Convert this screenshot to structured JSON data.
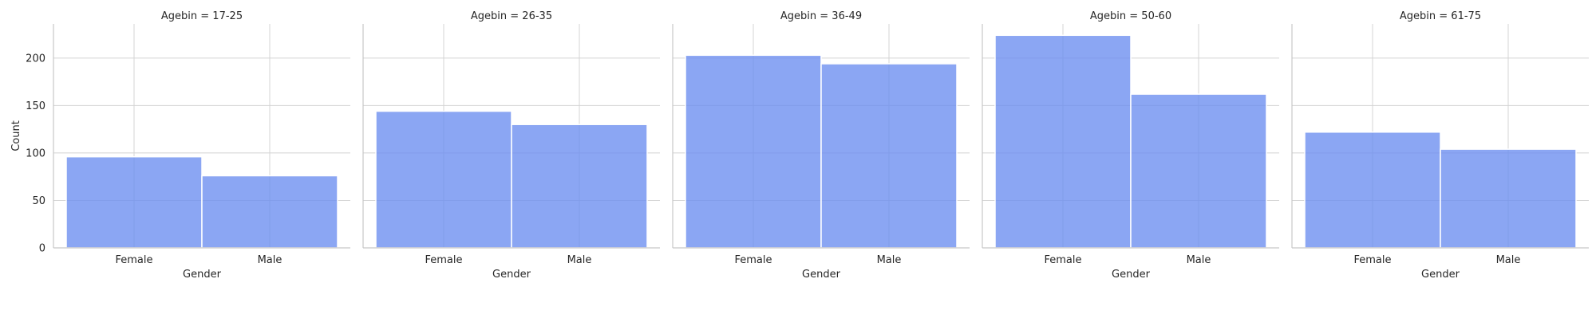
{
  "chart_data": {
    "type": "bar",
    "layout": "facet-grid",
    "grid": true,
    "xlabel": "Gender",
    "ylabel": "Count",
    "categories": [
      "Female",
      "Male"
    ],
    "ylim": [
      0,
      236
    ],
    "yticks": [
      0,
      50,
      100,
      150,
      200
    ],
    "bar_color": "#6a8df0",
    "panels": [
      {
        "title": "Agebin = 17-25",
        "values": [
          96,
          76
        ]
      },
      {
        "title": "Agebin = 26-35",
        "values": [
          144,
          130
        ]
      },
      {
        "title": "Agebin = 36-49",
        "values": [
          203,
          194
        ]
      },
      {
        "title": "Agebin = 50-60",
        "values": [
          224,
          162
        ]
      },
      {
        "title": "Agebin = 61-75",
        "values": [
          122,
          104
        ]
      }
    ]
  }
}
